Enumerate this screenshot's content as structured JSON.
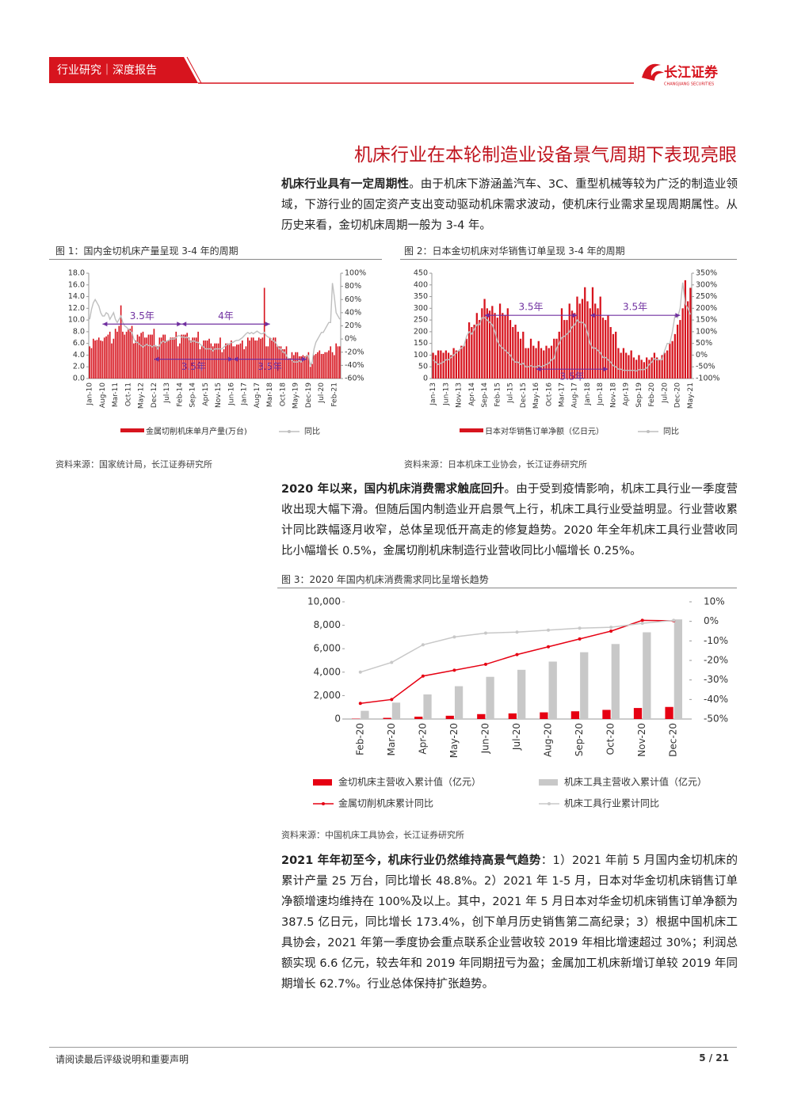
{
  "header": {
    "tab": "行业研究｜深度报告",
    "logo": "长江证券",
    "logo_en": "CHANGJIANG SECURITIES"
  },
  "heading": "机床行业在本轮制造业设备景气周期下表现亮眼",
  "paragraphs": [
    {
      "bold": "机床行业具有一定周期性",
      "text": "。由于机床下游涵盖汽车、3C、重型机械等较为广泛的制造业领域，下游行业的固定资产支出变动驱动机床需求波动，使机床行业需求呈现周期属性。从历史来看，金切机床周期一般为 3-4 年。"
    },
    {
      "bold": "2020 年以来，国内机床消费需求触底回升",
      "text": "。由于受到疫情影响，机床工具行业一季度营收出现大幅下滑。但随后国内制造业开启景气上行，机床工具行业受益明显。行业营收累计同比跌幅逐月收窄，总体呈现低开高走的修复趋势。2020 年全年机床工具行业营收同比小幅增长 0.5%，金属切削机床制造行业营收同比小幅增长 0.25%。"
    },
    {
      "bold": "2021 年年初至今，机床行业仍然维持高景气趋势",
      "text": "：1）2021 年前 5 月国内金切机床的累计产量 25 万台，同比增长 48.8%。2）2021 年 1-5 月，日本对华金切机床销售订单净额增速均维持在 100%及以上。其中，2021 年 5 月日本对华金切机床销售订单净额为 387.5 亿日元，同比增长 173.4%，创下单月历史销售第二高纪录；3）根据中国机床工具协会，2021 年第一季度协会重点联系企业营收较 2019 年相比增速超过 30%；利润总额实现 6.6 亿元，较去年和 2019 年同期扭亏为盈；金属加工机床新增订单较 2019 年同期增长 62.7%。行业总体保持扩张趋势。"
    }
  ],
  "footer": {
    "note": "请阅读最后评级说明和重要声明",
    "page": "5 / 21"
  },
  "chart_data": [
    {
      "type": "bar_line",
      "title": "图 1：国内金切机床产量呈现 3-4 年的周期",
      "source": "资料来源：国家统计局，长江证券研究所",
      "categories": [
        "Jan-10",
        null,
        null,
        null,
        null,
        null,
        null,
        "Aug-10",
        null,
        null,
        null,
        null,
        null,
        null,
        "Mar-11",
        null,
        null,
        null,
        null,
        null,
        null,
        "Oct-11",
        null,
        null,
        null,
        null,
        null,
        null,
        "May-12",
        null,
        null,
        null,
        null,
        null,
        null,
        "Dec-12",
        null,
        null,
        null,
        null,
        null,
        null,
        "Jul-13",
        null,
        null,
        null,
        null,
        null,
        null,
        "Feb-14",
        null,
        null,
        null,
        null,
        null,
        null,
        "Sep-14",
        null,
        null,
        null,
        null,
        null,
        null,
        "Apr-15",
        null,
        null,
        null,
        null,
        null,
        null,
        "Nov-15",
        null,
        null,
        null,
        null,
        null,
        null,
        "Jun-16",
        null,
        null,
        null,
        null,
        null,
        null,
        "Jan-17",
        null,
        null,
        null,
        null,
        null,
        null,
        "Aug-17",
        null,
        null,
        null,
        null,
        null,
        null,
        "Mar-18",
        null,
        null,
        null,
        null,
        null,
        null,
        "Oct-18",
        null,
        null,
        null,
        null,
        null,
        null,
        "May-19",
        null,
        null,
        null,
        null,
        null,
        null,
        "Dec-19",
        null,
        null,
        null,
        null,
        null,
        null,
        "Jul-20",
        null,
        null,
        null,
        null,
        null,
        null,
        "Feb-21",
        null,
        null,
        null
      ],
      "series": [
        {
          "name": "金属切削机床单月产量(万台)",
          "type": "bar",
          "color": "#d7141e",
          "values": [
            5.5,
            5.2,
            6.8,
            6.5,
            6.6,
            7.0,
            6.5,
            6.4,
            7.0,
            7.2,
            7.5,
            8.0,
            6.0,
            6.8,
            8.5,
            8.0,
            9.0,
            12.5,
            8.0,
            7.5,
            8.0,
            8.5,
            8.5,
            9.0,
            6.0,
            6.5,
            7.5,
            7.2,
            7.8,
            8.0,
            7.0,
            7.0,
            7.5,
            7.5,
            7.5,
            8.5,
            5.5,
            5.5,
            7.0,
            7.0,
            7.5,
            7.5,
            6.5,
            6.5,
            7.0,
            7.0,
            7.0,
            8.0,
            5.5,
            6.0,
            7.5,
            7.5,
            7.5,
            7.8,
            7.0,
            6.5,
            7.0,
            7.0,
            7.0,
            8.0,
            5.0,
            5.5,
            6.5,
            6.5,
            6.5,
            6.8,
            6.0,
            5.5,
            6.0,
            6.0,
            6.0,
            7.0,
            4.5,
            5.0,
            6.0,
            6.0,
            6.0,
            6.5,
            5.5,
            5.5,
            5.8,
            5.8,
            6.0,
            6.5,
            5.0,
            5.5,
            7.0,
            6.5,
            7.0,
            7.0,
            6.5,
            6.5,
            7.0,
            6.8,
            7.0,
            15.5,
            5.5,
            5.5,
            7.0,
            6.5,
            7.0,
            7.0,
            5.5,
            5.5,
            5.5,
            5.0,
            5.0,
            5.5,
            3.5,
            3.5,
            4.5,
            4.0,
            4.5,
            4.5,
            3.8,
            3.8,
            4.0,
            3.8,
            4.0,
            4.5,
            2.0,
            2.5,
            4.0,
            4.2,
            4.5,
            4.8,
            4.2,
            4.2,
            4.5,
            4.5,
            4.8,
            5.5,
            4.5,
            4.0,
            6.0,
            5.5,
            5.5
          ]
        },
        {
          "name": "同比",
          "type": "line",
          "axis": "y2",
          "color": "#bfbfbf",
          "values": [
            30,
            45,
            55,
            60,
            55,
            50,
            40,
            35,
            35,
            40,
            38,
            30,
            35,
            40,
            30,
            25,
            30,
            35,
            25,
            20,
            18,
            15,
            12,
            10,
            0,
            -5,
            -5,
            -8,
            -10,
            -12,
            -10,
            -8,
            -10,
            -10,
            -12,
            -10,
            -10,
            -15,
            -10,
            -5,
            -3,
            -5,
            -3,
            -2,
            0,
            0,
            0,
            2,
            5,
            5,
            3,
            3,
            2,
            3,
            0,
            -5,
            -3,
            -3,
            -5,
            -5,
            -8,
            -10,
            -12,
            -15,
            -15,
            -15,
            -15,
            -18,
            -15,
            -15,
            -15,
            -15,
            -15,
            -12,
            -10,
            -8,
            -8,
            -5,
            -5,
            -3,
            -2,
            -2,
            0,
            2,
            5,
            8,
            10,
            8,
            10,
            8,
            10,
            12,
            10,
            8,
            8,
            10,
            5,
            3,
            2,
            0,
            -3,
            -5,
            -10,
            -15,
            -15,
            -20,
            -20,
            -25,
            -30,
            -30,
            -32,
            -35,
            -35,
            -35,
            -33,
            -35,
            -30,
            -30,
            -25,
            -25,
            -40,
            -35,
            -15,
            -5,
            0,
            5,
            10,
            10,
            15,
            20,
            25,
            25,
            85,
            65,
            40,
            35,
            30
          ]
        }
      ],
      "ylim": [
        0,
        18
      ],
      "yticks": [
        {
          "value": 0,
          "label": "0.0"
        },
        {
          "value": 2,
          "label": "2.0"
        },
        {
          "value": 4,
          "label": "4.0"
        },
        {
          "value": 6,
          "label": "6.0"
        },
        {
          "value": 8,
          "label": "8.0"
        },
        {
          "value": 10,
          "label": "10.0"
        },
        {
          "value": 12,
          "label": "12.0"
        },
        {
          "value": 14,
          "label": "14.0"
        },
        {
          "value": 16,
          "label": "16.0"
        },
        {
          "value": 18,
          "label": "18.0"
        }
      ],
      "y2lim": [
        -60,
        100
      ],
      "y2ticks": [
        {
          "value": -60,
          "label": "-60%"
        },
        {
          "value": -40,
          "label": "-40%"
        },
        {
          "value": -20,
          "label": "-20%"
        },
        {
          "value": 0,
          "label": "0%"
        },
        {
          "value": 20,
          "label": "20%"
        },
        {
          "value": 40,
          "label": "40%"
        },
        {
          "value": 60,
          "label": "60%"
        },
        {
          "value": 80,
          "label": "80%"
        },
        {
          "value": 100,
          "label": "100%"
        }
      ],
      "annotations": [
        "3.5年",
        "4年",
        "3.5年",
        "3.5年"
      ]
    },
    {
      "type": "bar_line",
      "title": "图 2：日本金切机床对华销售订单呈现 3-4 年的周期",
      "source": "资料来源：日本机床工业协会，长江证券研究所",
      "categories": [
        "Jan-13",
        null,
        null,
        null,
        null,
        "Jun-13",
        null,
        null,
        null,
        null,
        "Nov-13",
        null,
        null,
        null,
        null,
        "Apr-14",
        null,
        null,
        null,
        null,
        "Sep-14",
        null,
        null,
        null,
        null,
        "Feb-15",
        null,
        null,
        null,
        null,
        "Jul-15",
        null,
        null,
        null,
        null,
        "Dec-15",
        null,
        null,
        null,
        null,
        "May-16",
        null,
        null,
        null,
        null,
        "Oct-16",
        null,
        null,
        null,
        null,
        "Mar-17",
        null,
        null,
        null,
        null,
        "Aug-17",
        null,
        null,
        null,
        null,
        "Jan-18",
        null,
        null,
        null,
        null,
        "Jun-18",
        null,
        null,
        null,
        null,
        "Nov-18",
        null,
        null,
        null,
        null,
        "Apr-19",
        null,
        null,
        null,
        null,
        "Sep-19",
        null,
        null,
        null,
        null,
        "Feb-20",
        null,
        null,
        null,
        null,
        "Jul-20",
        null,
        null,
        null,
        null,
        "Dec-20",
        null,
        null,
        null,
        null,
        "May-21"
      ],
      "series": [
        {
          "name": "日本对华销售订单净额（亿日元）",
          "type": "bar",
          "color": "#d7141e",
          "values": [
            110,
            100,
            120,
            120,
            110,
            120,
            110,
            100,
            130,
            120,
            120,
            140,
            140,
            170,
            240,
            220,
            230,
            280,
            250,
            300,
            340,
            300,
            290,
            310,
            280,
            260,
            320,
            280,
            270,
            300,
            250,
            220,
            230,
            200,
            170,
            200,
            130,
            130,
            170,
            140,
            130,
            160,
            130,
            120,
            140,
            130,
            140,
            170,
            170,
            200,
            300,
            250,
            250,
            320,
            290,
            280,
            350,
            320,
            340,
            390,
            330,
            300,
            390,
            320,
            300,
            350,
            260,
            250,
            270,
            220,
            190,
            200,
            130,
            110,
            130,
            110,
            100,
            120,
            90,
            80,
            100,
            80,
            70,
            90,
            80,
            90,
            110,
            90,
            80,
            100,
            110,
            120,
            150,
            160,
            190,
            230,
            250,
            300,
            420,
            330,
            387.5
          ]
        },
        {
          "name": "同比",
          "type": "line",
          "axis": "y2",
          "color": "#bfbfbf",
          "values": [
            -20,
            -30,
            -40,
            -35,
            -30,
            -20,
            -20,
            -10,
            0,
            10,
            20,
            30,
            40,
            80,
            100,
            90,
            110,
            130,
            130,
            160,
            160,
            150,
            140,
            130,
            100,
            60,
            40,
            30,
            20,
            10,
            0,
            -20,
            -30,
            -30,
            -40,
            -35,
            -50,
            -50,
            -45,
            -50,
            -50,
            -45,
            -50,
            -45,
            -40,
            -35,
            -20,
            -15,
            30,
            50,
            75,
            80,
            90,
            100,
            120,
            130,
            150,
            140,
            140,
            130,
            95,
            50,
            30,
            30,
            20,
            10,
            -10,
            -10,
            -20,
            -30,
            -45,
            -50,
            -60,
            -60,
            -65,
            -65,
            -65,
            -65,
            -65,
            -68,
            -62,
            -62,
            -62,
            -55,
            -40,
            -30,
            -15,
            -20,
            -20,
            -20,
            20,
            50,
            50,
            100,
            170,
            160,
            200,
            310,
            220,
            200,
            173.4
          ]
        }
      ],
      "ylim": [
        0,
        450
      ],
      "yticks": [
        0,
        50,
        100,
        150,
        200,
        250,
        300,
        350,
        400,
        450
      ],
      "y2lim": [
        -100,
        350
      ],
      "y2ticks": [
        {
          "value": -100,
          "label": "-100%"
        },
        {
          "value": -50,
          "label": "-50%"
        },
        {
          "value": 0,
          "label": "0%"
        },
        {
          "value": 50,
          "label": "50%"
        },
        {
          "value": 100,
          "label": "100%"
        },
        {
          "value": 150,
          "label": "150%"
        },
        {
          "value": 200,
          "label": "200%"
        },
        {
          "value": 250,
          "label": "250%"
        },
        {
          "value": 300,
          "label": "300%"
        },
        {
          "value": 350,
          "label": "350%"
        }
      ],
      "annotations": [
        "3.5年",
        "3.5年",
        "3.5年"
      ]
    },
    {
      "type": "bar_line",
      "title": "图 3：2020 年国内机床消费需求同比呈增长趋势",
      "source": "资料来源：中国机床工具协会，长江证券研究所",
      "categories": [
        "Feb-20",
        "Mar-20",
        "Apr-20",
        "May-20",
        "Jun-20",
        "Jul-20",
        "Aug-20",
        "Sep-20",
        "Oct-20",
        "Nov-20",
        "Dec-20"
      ],
      "series": [
        {
          "name": "金切机床主营收入累计值（亿元）",
          "type": "bar",
          "color": "#e60012",
          "values": [
            30,
            100,
            200,
            280,
            420,
            480,
            570,
            660,
            780,
            940,
            1030
          ]
        },
        {
          "name": "机床工具主营收入累计值（亿元）",
          "type": "bar",
          "color": "#c8c8c8",
          "values": [
            700,
            1400,
            2100,
            2800,
            3600,
            4200,
            4900,
            5700,
            6400,
            7400,
            8500
          ]
        },
        {
          "name": "金属切削机床累计同比",
          "type": "line",
          "axis": "y2",
          "color": "#e60012",
          "markers": true,
          "values": [
            -42,
            -40,
            -28,
            -25,
            -22,
            -17,
            -13,
            -9,
            -5,
            0.5,
            0.25
          ]
        },
        {
          "name": "机床工具行业累计同比",
          "type": "line",
          "axis": "y2",
          "color": "#c8c8c8",
          "markers": true,
          "values": [
            -26,
            -21,
            -12,
            -8,
            -6,
            -5.5,
            -4.5,
            -3.5,
            -3,
            -1,
            0.5
          ]
        }
      ],
      "ylim": [
        0,
        10000
      ],
      "yticks": [
        0,
        {
          "value": 2000,
          "label": "2,000"
        },
        {
          "value": 4000,
          "label": "4,000"
        },
        {
          "value": 6000,
          "label": "6,000"
        },
        {
          "value": 8000,
          "label": "8,000"
        },
        {
          "value": 10000,
          "label": "10,000"
        }
      ],
      "y2lim": [
        -50,
        10
      ],
      "y2ticks": [
        {
          "value": -50,
          "label": "-50%"
        },
        {
          "value": -40,
          "label": "-40%"
        },
        {
          "value": -30,
          "label": "-30%"
        },
        {
          "value": -20,
          "label": "-20%"
        },
        {
          "value": -10,
          "label": "-10%"
        },
        {
          "value": 0,
          "label": "0%"
        },
        {
          "value": 10,
          "label": "10%"
        }
      ]
    }
  ]
}
